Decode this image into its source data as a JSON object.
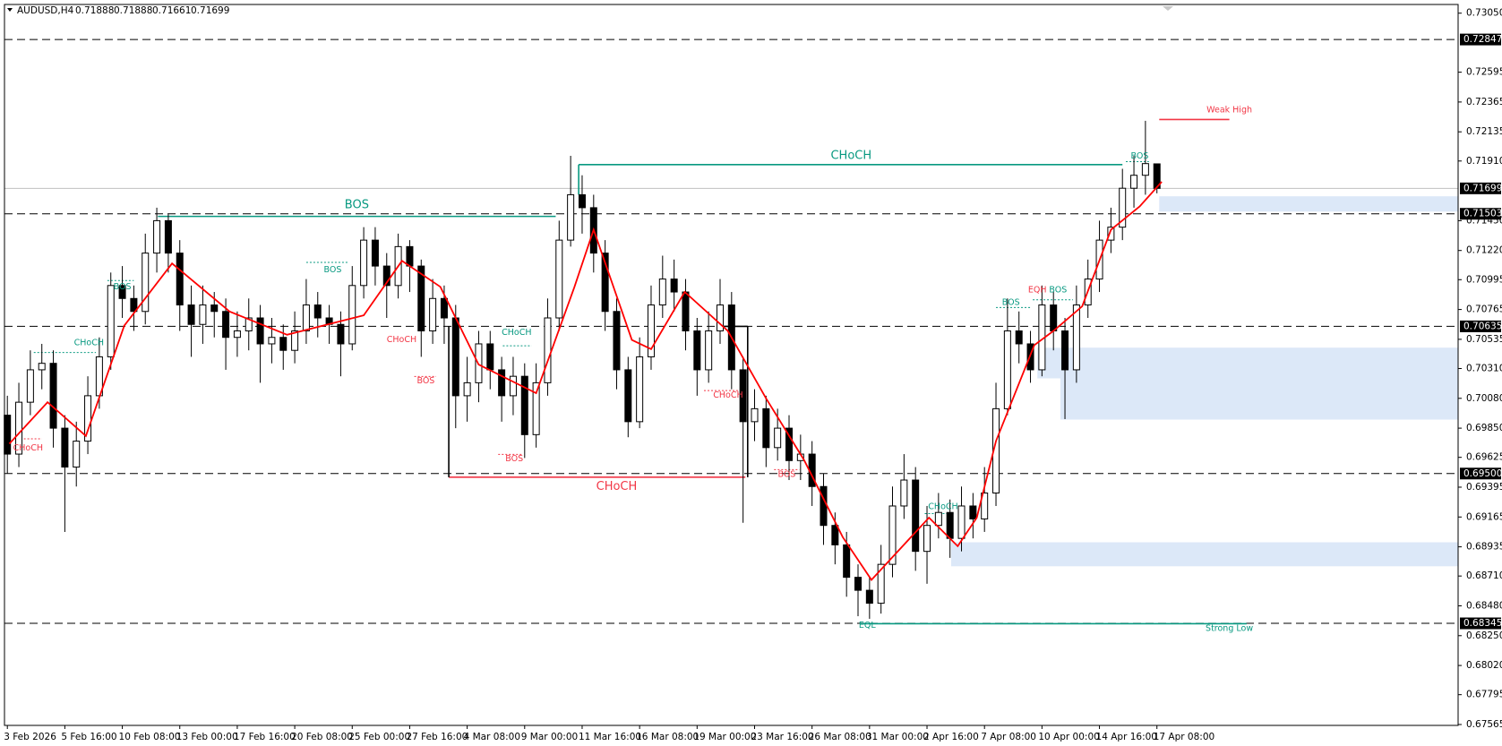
{
  "chart_data": {
    "type": "candlestick",
    "symbol": "AUDUSD,H4",
    "ylim": [
      0.67558,
      0.73117
    ],
    "xlim": [
      -0.25,
      126.2
    ],
    "yticks": [
      {
        "value": 0.7305,
        "label": "0.73050"
      },
      0.72595,
      0.72365,
      0.72135,
      {
        "value": 0.7191,
        "label": "0.71910"
      },
      {
        "value": 0.7145,
        "label": "0.71450"
      },
      {
        "value": 0.7122,
        "label": "0.71220"
      },
      0.70995,
      0.70765,
      0.70535,
      {
        "value": 0.7031,
        "label": "0.70310"
      },
      {
        "value": 0.7008,
        "label": "0.70080"
      },
      {
        "value": 0.6985,
        "label": "0.69850"
      },
      0.69625,
      0.69395,
      0.69165,
      0.68935,
      {
        "value": 0.6871,
        "label": "0.68710"
      },
      {
        "value": 0.6848,
        "label": "0.68480"
      },
      {
        "value": 0.6825,
        "label": "0.68250"
      },
      {
        "value": 0.6802,
        "label": "0.68020"
      },
      0.67795,
      0.67565
    ],
    "xticks": [
      {
        "value": 0,
        "label": "3 Feb 2026"
      },
      {
        "value": 5,
        "label": "5 Feb 16:00"
      },
      {
        "value": 10,
        "label": "10 Feb 08:00"
      },
      {
        "value": 15,
        "label": "13 Feb 00:00"
      },
      {
        "value": 20,
        "label": "17 Feb 16:00"
      },
      {
        "value": 25,
        "label": "20 Feb 08:00"
      },
      {
        "value": 30,
        "label": "25 Feb 00:00"
      },
      {
        "value": 35,
        "label": "27 Feb 16:00"
      },
      {
        "value": 40,
        "label": "4 Mar 08:00"
      },
      {
        "value": 45,
        "label": "9 Mar 00:00"
      },
      {
        "value": 50,
        "label": "11 Mar 16:00"
      },
      {
        "value": 55,
        "label": "16 Mar 08:00"
      },
      {
        "value": 60,
        "label": "19 Mar 00:00"
      },
      {
        "value": 65,
        "label": "23 Mar 16:00"
      },
      {
        "value": 70,
        "label": "26 Mar 08:00"
      },
      {
        "value": 75,
        "label": "31 Mar 00:00"
      },
      {
        "value": 80,
        "label": "2 Apr 16:00"
      },
      {
        "value": 85,
        "label": "7 Apr 08:00"
      },
      {
        "value": 90,
        "label": "10 Apr 00:00"
      },
      {
        "value": 95,
        "label": "14 Apr 16:00"
      },
      {
        "value": 100,
        "label": "17 Apr 08:00"
      }
    ],
    "open": [
      0.6995,
      0.6965,
      0.7005,
      0.703,
      0.7035,
      0.6985,
      0.6955,
      0.6975,
      0.701,
      0.704,
      0.7095,
      0.7085,
      0.7075,
      0.712,
      0.7145,
      0.712,
      0.708,
      0.7065,
      0.708,
      0.7075,
      0.7055,
      0.706,
      0.707,
      0.705,
      0.7055,
      0.7045,
      0.706,
      0.708,
      0.707,
      0.7065,
      0.705,
      0.7095,
      0.713,
      0.711,
      0.7095,
      0.7125,
      0.711,
      0.706,
      0.7085,
      0.707,
      0.701,
      0.702,
      0.705,
      0.703,
      0.701,
      0.7025,
      0.698,
      0.702,
      0.707,
      0.713,
      0.7165,
      0.7155,
      0.712,
      0.7075,
      0.703,
      0.699,
      0.704,
      0.708,
      0.71,
      0.709,
      0.706,
      0.703,
      0.706,
      0.708,
      0.703,
      0.699,
      0.7,
      0.697,
      0.6985,
      0.696,
      0.6965,
      0.694,
      0.691,
      0.6895,
      0.687,
      0.686,
      0.685,
      0.688,
      0.6925,
      0.6945,
      0.689,
      0.691,
      0.692,
      0.69,
      0.6925,
      0.6915,
      0.6935,
      0.7,
      0.706,
      0.705,
      0.703,
      0.708,
      0.706,
      0.703,
      0.708,
      0.71,
      0.713,
      0.714,
      0.717,
      0.718,
      0.71888
    ],
    "high": [
      0.701,
      0.702,
      0.7045,
      0.705,
      0.7045,
      0.6995,
      0.699,
      0.7025,
      0.7055,
      0.7105,
      0.711,
      0.7095,
      0.7135,
      0.7155,
      0.715,
      0.713,
      0.7095,
      0.7095,
      0.709,
      0.7085,
      0.7075,
      0.7085,
      0.708,
      0.707,
      0.7065,
      0.7075,
      0.71,
      0.709,
      0.708,
      0.7075,
      0.711,
      0.714,
      0.714,
      0.712,
      0.7135,
      0.713,
      0.7115,
      0.71,
      0.7095,
      0.708,
      0.704,
      0.706,
      0.706,
      0.704,
      0.704,
      0.7035,
      0.7035,
      0.7085,
      0.7145,
      0.7195,
      0.718,
      0.7165,
      0.713,
      0.7085,
      0.704,
      0.7055,
      0.7095,
      0.7118,
      0.7115,
      0.71,
      0.707,
      0.7075,
      0.71,
      0.709,
      0.704,
      0.7015,
      0.701,
      0.7,
      0.6995,
      0.698,
      0.6975,
      0.695,
      0.692,
      0.6905,
      0.688,
      0.687,
      0.6895,
      0.694,
      0.6965,
      0.6955,
      0.6925,
      0.6935,
      0.693,
      0.694,
      0.6935,
      0.6955,
      0.702,
      0.7085,
      0.7075,
      0.706,
      0.7095,
      0.709,
      0.707,
      0.7095,
      0.7115,
      0.7145,
      0.7155,
      0.7185,
      0.7195,
      0.7222,
      0.71888
    ],
    "low": [
      0.695,
      0.6955,
      0.6995,
      0.7015,
      0.697,
      0.6905,
      0.694,
      0.6965,
      0.7,
      0.703,
      0.707,
      0.706,
      0.7065,
      0.7105,
      0.7105,
      0.706,
      0.704,
      0.705,
      0.7055,
      0.703,
      0.704,
      0.7045,
      0.702,
      0.7035,
      0.703,
      0.7035,
      0.705,
      0.7055,
      0.705,
      0.7025,
      0.7045,
      0.7085,
      0.7095,
      0.707,
      0.7085,
      0.709,
      0.704,
      0.705,
      0.705,
      0.6985,
      0.699,
      0.7005,
      0.7015,
      0.699,
      0.6995,
      0.6962,
      0.697,
      0.701,
      0.706,
      0.7125,
      0.7135,
      0.7105,
      0.706,
      0.7015,
      0.6978,
      0.6985,
      0.703,
      0.707,
      0.7075,
      0.7045,
      0.701,
      0.702,
      0.705,
      0.7015,
      0.6912,
      0.6975,
      0.6955,
      0.696,
      0.6945,
      0.6945,
      0.6925,
      0.6895,
      0.688,
      0.6855,
      0.684,
      0.6838,
      0.6842,
      0.687,
      0.6915,
      0.6875,
      0.6865,
      0.69,
      0.6885,
      0.689,
      0.69,
      0.6905,
      0.6925,
      0.6995,
      0.7035,
      0.702,
      0.7025,
      0.7045,
      0.6992,
      0.702,
      0.707,
      0.709,
      0.712,
      0.713,
      0.7155,
      0.7165,
      0.71661
    ],
    "close": [
      0.6965,
      0.7005,
      0.703,
      0.7035,
      0.6985,
      0.6955,
      0.6975,
      0.701,
      0.704,
      0.7095,
      0.7085,
      0.7075,
      0.712,
      0.7145,
      0.712,
      0.708,
      0.7065,
      0.708,
      0.7075,
      0.7055,
      0.706,
      0.707,
      0.705,
      0.7055,
      0.7045,
      0.706,
      0.708,
      0.707,
      0.7065,
      0.705,
      0.7095,
      0.713,
      0.711,
      0.7095,
      0.7125,
      0.711,
      0.706,
      0.7085,
      0.707,
      0.701,
      0.702,
      0.705,
      0.703,
      0.701,
      0.7025,
      0.698,
      0.702,
      0.707,
      0.713,
      0.7165,
      0.7155,
      0.712,
      0.7075,
      0.703,
      0.699,
      0.704,
      0.708,
      0.71,
      0.709,
      0.706,
      0.703,
      0.706,
      0.708,
      0.703,
      0.699,
      0.7,
      0.697,
      0.6985,
      0.696,
      0.6965,
      0.694,
      0.691,
      0.6895,
      0.687,
      0.686,
      0.685,
      0.688,
      0.6925,
      0.6945,
      0.689,
      0.691,
      0.692,
      0.69,
      0.6925,
      0.6915,
      0.6935,
      0.7,
      0.706,
      0.705,
      0.703,
      0.708,
      0.706,
      0.703,
      0.708,
      0.71,
      0.713,
      0.714,
      0.717,
      0.718,
      0.7189,
      0.71699
    ],
    "ma": {
      "color": "#ff0000",
      "x": [
        0.17,
        3.5,
        6.83,
        10.17,
        14.33,
        19.33,
        24.33,
        31,
        34.33,
        37.67,
        41,
        46,
        49.33,
        51,
        54.33,
        56,
        58.92,
        62.67,
        66,
        69.33,
        72.67,
        75.17,
        80.17,
        82.67,
        84.33,
        86,
        89.33,
        91,
        93.5,
        96,
        98.5,
        100.42
      ],
      "values": [
        0.6973,
        0.7005,
        0.6979,
        0.7064,
        0.7112,
        0.7075,
        0.7057,
        0.7072,
        0.7114,
        0.7094,
        0.7034,
        0.7012,
        0.7094,
        0.7138,
        0.7053,
        0.7046,
        0.709,
        0.706,
        0.7008,
        0.696,
        0.6901,
        0.6868,
        0.6916,
        0.6894,
        0.6916,
        0.6975,
        0.7049,
        0.706,
        0.7079,
        0.7138,
        0.7156,
        0.7175
      ]
    },
    "levels": [
      0.72847,
      0.71503,
      0.70635,
      {
        "value": 0.695,
        "label": "0.69500"
      },
      0.68345
    ],
    "price_line": 0.71699,
    "zones": [
      {
        "x0": 100.2,
        "top": 0.71638,
        "bottom": 0.7152
      },
      {
        "x0": 89.6,
        "top": 0.7047,
        "bottom": 0.70234
      },
      {
        "x0": 91.6,
        "top": 0.7047,
        "bottom": 0.69916
      },
      {
        "x0": 82.1,
        "top": 0.6897,
        "bottom": 0.68785
      }
    ],
    "segments": [
      {
        "x0": 13.1,
        "x1": 47.7,
        "y0": 0.71483,
        "y1": 0.71483,
        "color": "#089981",
        "style": "solid"
      },
      {
        "x0": 49.7,
        "x1": 97.0,
        "y0": 0.71882,
        "y1": 0.71882,
        "color": "#089981",
        "style": "solid"
      },
      {
        "x0": 49.7,
        "x1": 49.7,
        "y0": 0.71882,
        "y1": 0.7165,
        "color": "#089981",
        "style": "solid"
      },
      {
        "x0": 38.4,
        "x1": 64.2,
        "y0": 0.69472,
        "y1": 0.69472,
        "color": "#f23645",
        "style": "solid"
      },
      {
        "x0": 38.4,
        "x1": 38.4,
        "y0": 0.70635,
        "y1": 0.69472,
        "color": "#000000",
        "style": "solid"
      },
      {
        "x0": 62.3,
        "x1": 64.4,
        "y0": 0.70635,
        "y1": 0.70635,
        "color": "#000000",
        "style": "solid"
      },
      {
        "x0": 64.4,
        "x1": 64.4,
        "y0": 0.70635,
        "y1": 0.69472,
        "color": "#000000",
        "style": "solid"
      },
      {
        "x0": 2.3,
        "x1": 7.7,
        "y0": 0.70433,
        "y1": 0.70433,
        "color": "#089981",
        "style": "dashed"
      },
      {
        "x0": 0.5,
        "x1": 3.0,
        "y0": 0.69768,
        "y1": 0.69768,
        "color": "#f23645",
        "style": "dashed"
      },
      {
        "x0": 8.7,
        "x1": 11,
        "y0": 0.70988,
        "y1": 0.70988,
        "color": "#089981",
        "style": "dashed"
      },
      {
        "x0": 26,
        "x1": 29.7,
        "y0": 0.71128,
        "y1": 0.71128,
        "color": "#089981",
        "style": "dashed"
      },
      {
        "x0": 35.4,
        "x1": 37.3,
        "y0": 0.70249,
        "y1": 0.70249,
        "color": "#f23645",
        "style": "dashed"
      },
      {
        "x0": 43.1,
        "x1": 45.6,
        "y0": 0.70485,
        "y1": 0.70485,
        "color": "#089981",
        "style": "dashed"
      },
      {
        "x0": 42.7,
        "x1": 44.8,
        "y0": 0.69648,
        "y1": 0.69648,
        "color": "#f23645",
        "style": "dashed"
      },
      {
        "x0": 60.6,
        "x1": 63.9,
        "y0": 0.7014,
        "y1": 0.7014,
        "color": "#f23645",
        "style": "dashed"
      },
      {
        "x0": 66.7,
        "x1": 68.9,
        "y0": 0.6953,
        "y1": 0.6953,
        "color": "#f23645",
        "style": "dashed"
      },
      {
        "x0": 79.8,
        "x1": 82.3,
        "y0": 0.69191,
        "y1": 0.69191,
        "color": "#089981",
        "style": "dashed"
      },
      {
        "x0": 86,
        "x1": 89,
        "y0": 0.7078,
        "y1": 0.7078,
        "color": "#089981",
        "style": "dashed"
      },
      {
        "x0": 89.2,
        "x1": 92.7,
        "y0": 0.7084,
        "y1": 0.7084,
        "color": "#089981",
        "style": "dashed"
      },
      {
        "x0": 97.3,
        "x1": 99.3,
        "y0": 0.71905,
        "y1": 0.71905,
        "color": "#089981",
        "style": "dashed"
      },
      {
        "x0": 100.2,
        "x1": 106.3,
        "y0": 0.7223,
        "y1": 0.7223,
        "color": "#f23645",
        "style": "solid"
      },
      {
        "x0": 74.2,
        "x1": 107.8,
        "y0": 0.68342,
        "y1": 0.68342,
        "color": "#089981",
        "style": "solid"
      }
    ],
    "labels": [
      {
        "text": "BOS",
        "x": 30.4,
        "y": 0.7157,
        "color": "#089981"
      },
      {
        "text": "CHoCH",
        "x": 73.4,
        "y": 0.71949,
        "color": "#089981"
      },
      {
        "text": "CHoCH",
        "x": 53,
        "y": 0.69398,
        "color": "#f23645"
      },
      {
        "text": "CHoCH",
        "x": 7.1,
        "y": 0.70506,
        "color": "#089981"
      },
      {
        "text": "CHoCH",
        "x": 1.8,
        "y": 0.69694,
        "color": "#f23645"
      },
      {
        "text": "BOS",
        "x": 10,
        "y": 0.70937,
        "color": "#089981"
      },
      {
        "text": "BOS",
        "x": 28.3,
        "y": 0.71071,
        "color": "#089981"
      },
      {
        "text": "CHoCH",
        "x": 34.3,
        "y": 0.7053,
        "color": "#f23645"
      },
      {
        "text": "BOS",
        "x": 36.4,
        "y": 0.70212,
        "color": "#f23645"
      },
      {
        "text": "CHoCH",
        "x": 44.3,
        "y": 0.70587,
        "color": "#089981"
      },
      {
        "text": "BOS",
        "x": 44.1,
        "y": 0.69611,
        "color": "#f23645"
      },
      {
        "text": "CHoCH",
        "x": 62.7,
        "y": 0.70103,
        "color": "#f23645"
      },
      {
        "text": "BOS",
        "x": 67.8,
        "y": 0.69493,
        "color": "#f23645"
      },
      {
        "text": "CHoCH",
        "x": 81.4,
        "y": 0.69243,
        "color": "#089981"
      },
      {
        "text": "BOS",
        "x": 87.3,
        "y": 0.70817,
        "color": "#089981"
      },
      {
        "text": "EQH",
        "x": 89.6,
        "y": 0.70914,
        "color": "#f23645"
      },
      {
        "text": "BOS",
        "x": 91.4,
        "y": 0.70914,
        "color": "#089981"
      },
      {
        "text": "BOS",
        "x": 98.5,
        "y": 0.71948,
        "color": "#089981"
      },
      {
        "text": "Weak High",
        "x": 106.3,
        "y": 0.72301,
        "color": "#f23645"
      },
      {
        "text": "Strong Low",
        "x": 106.3,
        "y": 0.68305,
        "color": "#089981"
      },
      {
        "text": "EQL",
        "x": 74.8,
        "y": 0.68327,
        "color": "#089981"
      }
    ]
  }
}
